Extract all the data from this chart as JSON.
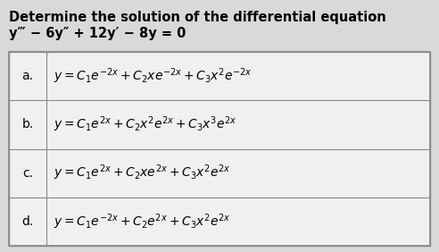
{
  "title_line1": "Determine the solution of the differential equation",
  "title_line2": "y‴ − 6y″ + 12y′ − 8y = 0",
  "rows": [
    {
      "label": "a.",
      "formula": "$y = C_1e^{-2x} + C_2xe^{-2x} + C_3x^2e^{-2x}$"
    },
    {
      "label": "b.",
      "formula": "$y = C_1e^{2x} + C_2x^2e^{2x} + C_3x^3e^{2x}$"
    },
    {
      "label": "c.",
      "formula": "$y = C_1e^{2x} + C_2xe^{2x} + C_3x^2e^{2x}$"
    },
    {
      "label": "d.",
      "formula": "$y = C_1e^{-2x} + C_2e^{2x} + C_3x^2e^{2x}$"
    }
  ],
  "bg_color": "#d9d9d9",
  "cell_bg": "#f0f0f0",
  "border_color": "#888888",
  "text_color": "#000000",
  "title_fontsize": 10.5,
  "formula_fontsize": 10,
  "label_fontsize": 10
}
